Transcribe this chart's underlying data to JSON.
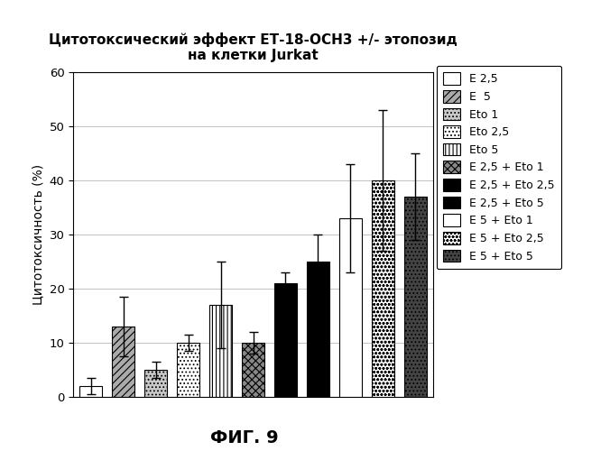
{
  "title_line1": "Цитотоксический эффект ЕТ-18-ОСН3 +/- этопозид",
  "title_line2": "на клетки Jurkat",
  "xlabel_bottom": "ФИГ. 9",
  "ylabel": "Цитотоксичность (%)",
  "ylim": [
    0,
    60
  ],
  "yticks": [
    0,
    10,
    20,
    30,
    40,
    50,
    60
  ],
  "series": [
    {
      "label": "E 2,5",
      "value": 2,
      "err": 1.5,
      "hatch": "",
      "facecolor": "white",
      "edgecolor": "black"
    },
    {
      "label": "E  5",
      "value": 13,
      "err": 5.5,
      "hatch": "////",
      "facecolor": "#aaaaaa",
      "edgecolor": "black"
    },
    {
      "label": "Eto 1",
      "value": 5,
      "err": 1.5,
      "hatch": "....",
      "facecolor": "#c8c8c8",
      "edgecolor": "black"
    },
    {
      "label": "Eto 2,5",
      "value": 10,
      "err": 1.5,
      "hatch": "....",
      "facecolor": "white",
      "edgecolor": "black"
    },
    {
      "label": "Eto 5",
      "value": 17,
      "err": 8,
      "hatch": "||||",
      "facecolor": "white",
      "edgecolor": "black"
    },
    {
      "label": "E 2,5 + Eto 1",
      "value": 10,
      "err": 2,
      "hatch": "xxxx",
      "facecolor": "#888888",
      "edgecolor": "black"
    },
    {
      "label": "E 2,5 + Eto 2,5",
      "value": 21,
      "err": 2,
      "hatch": "",
      "facecolor": "black",
      "edgecolor": "black"
    },
    {
      "label": "E 2,5 + Eto 5",
      "value": 25,
      "err": 5,
      "hatch": "",
      "facecolor": "black",
      "edgecolor": "black"
    },
    {
      "label": "E 5 + Eto 1",
      "value": 33,
      "err": 10,
      "hatch": "====",
      "facecolor": "white",
      "edgecolor": "black"
    },
    {
      "label": "E 5 + Eto 2,5",
      "value": 40,
      "err": 13,
      "hatch": "oooo",
      "facecolor": "white",
      "edgecolor": "black"
    },
    {
      "label": "E 5 + Eto 5",
      "value": 37,
      "err": 8,
      "hatch": "....",
      "facecolor": "#444444",
      "edgecolor": "black"
    }
  ],
  "bar_width": 0.7,
  "background_color": "white",
  "title_fontsize": 11,
  "label_fontsize": 10,
  "legend_fontsize": 9
}
